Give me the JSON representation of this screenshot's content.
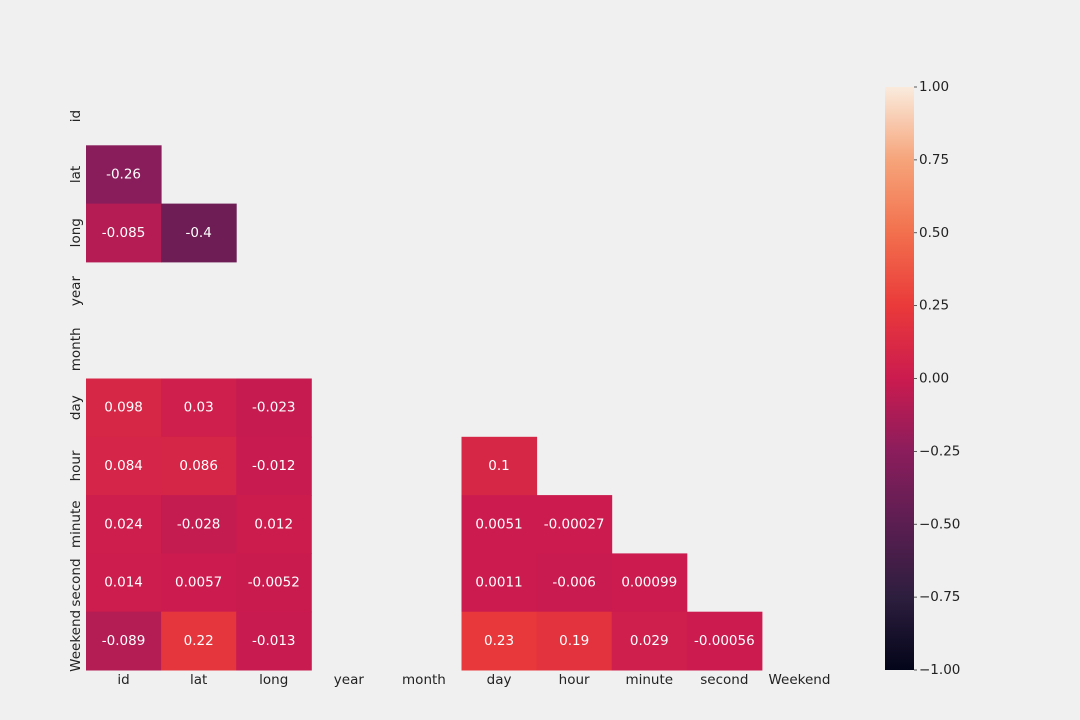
{
  "chart_data": {
    "type": "heatmap",
    "variables": [
      "id",
      "lat",
      "long",
      "year",
      "month",
      "day",
      "hour",
      "minute",
      "second",
      "Weekend"
    ],
    "mask": "upper-triangle-and-diagonal",
    "cells": [
      {
        "row": "lat",
        "col": "id",
        "value": -0.26,
        "label": "-0.26"
      },
      {
        "row": "long",
        "col": "id",
        "value": -0.085,
        "label": "-0.085"
      },
      {
        "row": "long",
        "col": "lat",
        "value": -0.4,
        "label": "-0.4"
      },
      {
        "row": "day",
        "col": "id",
        "value": 0.098,
        "label": "0.098"
      },
      {
        "row": "day",
        "col": "lat",
        "value": 0.03,
        "label": "0.03"
      },
      {
        "row": "day",
        "col": "long",
        "value": -0.023,
        "label": "-0.023"
      },
      {
        "row": "hour",
        "col": "id",
        "value": 0.084,
        "label": "0.084"
      },
      {
        "row": "hour",
        "col": "lat",
        "value": 0.086,
        "label": "0.086"
      },
      {
        "row": "hour",
        "col": "long",
        "value": -0.012,
        "label": "-0.012"
      },
      {
        "row": "hour",
        "col": "day",
        "value": 0.1,
        "label": "0.1"
      },
      {
        "row": "minute",
        "col": "id",
        "value": 0.024,
        "label": "0.024"
      },
      {
        "row": "minute",
        "col": "lat",
        "value": -0.028,
        "label": "-0.028"
      },
      {
        "row": "minute",
        "col": "long",
        "value": 0.012,
        "label": "0.012"
      },
      {
        "row": "minute",
        "col": "day",
        "value": 0.0051,
        "label": "0.0051"
      },
      {
        "row": "minute",
        "col": "hour",
        "value": -0.00027,
        "label": "-0.00027"
      },
      {
        "row": "second",
        "col": "id",
        "value": 0.014,
        "label": "0.014"
      },
      {
        "row": "second",
        "col": "lat",
        "value": 0.0057,
        "label": "0.0057"
      },
      {
        "row": "second",
        "col": "long",
        "value": -0.0052,
        "label": "-0.0052"
      },
      {
        "row": "second",
        "col": "day",
        "value": 0.0011,
        "label": "0.0011"
      },
      {
        "row": "second",
        "col": "hour",
        "value": -0.006,
        "label": "-0.006"
      },
      {
        "row": "second",
        "col": "minute",
        "value": 0.00099,
        "label": "0.00099"
      },
      {
        "row": "Weekend",
        "col": "id",
        "value": -0.089,
        "label": "-0.089"
      },
      {
        "row": "Weekend",
        "col": "lat",
        "value": 0.22,
        "label": "0.22"
      },
      {
        "row": "Weekend",
        "col": "long",
        "value": -0.013,
        "label": "-0.013"
      },
      {
        "row": "Weekend",
        "col": "day",
        "value": 0.23,
        "label": "0.23"
      },
      {
        "row": "Weekend",
        "col": "hour",
        "value": 0.19,
        "label": "0.19"
      },
      {
        "row": "Weekend",
        "col": "minute",
        "value": 0.029,
        "label": "0.029"
      },
      {
        "row": "Weekend",
        "col": "second",
        "value": -0.00056,
        "label": "-0.00056"
      }
    ],
    "colorbar": {
      "vmin": -1.0,
      "vmax": 1.0,
      "ticks": [
        1.0,
        0.75,
        0.5,
        0.25,
        0.0,
        -0.25,
        -0.5,
        -0.75,
        -1.0
      ],
      "tick_labels": [
        "1.00",
        "0.75",
        "0.50",
        "0.25",
        "0.00",
        "−0.25",
        "−0.50",
        "−0.75",
        "−1.00"
      ]
    },
    "colormap": "rocket",
    "grid": false,
    "title": "",
    "xlabel": "",
    "ylabel": ""
  },
  "colors": {
    "background": "#f0f0f0"
  }
}
